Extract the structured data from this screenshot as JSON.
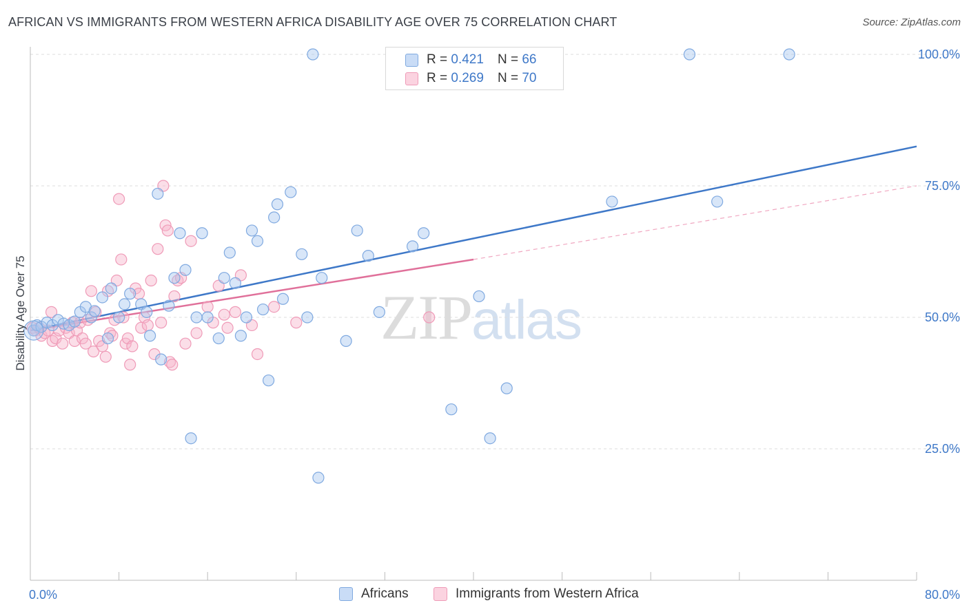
{
  "header": {
    "title": "AFRICAN VS IMMIGRANTS FROM WESTERN AFRICA DISABILITY AGE OVER 75 CORRELATION CHART",
    "source": "Source: ZipAtlas.com"
  },
  "watermark": {
    "zip": "ZIP",
    "atlas": "atlas"
  },
  "legend": {
    "r_label": "R =",
    "n_label": "N =",
    "rows": [
      {
        "r": "0.421",
        "n": "66",
        "color": "#a9c8f0"
      },
      {
        "r": "0.269",
        "n": "70",
        "color": "#f6b6cb"
      }
    ]
  },
  "bottom_legend": {
    "items": [
      {
        "label": "Africans",
        "color": "#a9c8f0"
      },
      {
        "label": "Immigrants from Western Africa",
        "color": "#f6b6cb"
      }
    ]
  },
  "chart_data": {
    "type": "scatter",
    "title": "AFRICAN VS IMMIGRANTS FROM WESTERN AFRICA DISABILITY AGE OVER 75 CORRELATION CHART",
    "ylabel": "Disability Age Over 75",
    "xlabel": "",
    "xlim": [
      0,
      80
    ],
    "ylim": [
      0,
      105
    ],
    "x_tick_labels": {
      "left": "0.0%",
      "right": "80.0%"
    },
    "y_ticks": [
      {
        "value": 25,
        "label": "25.0%"
      },
      {
        "value": 50,
        "label": "50.0%"
      },
      {
        "value": 75,
        "label": "75.0%"
      },
      {
        "value": 100,
        "label": "100.0%"
      }
    ],
    "grid": true,
    "colors": {
      "blue": "#3e78c8",
      "pink": "#e0709a",
      "blue_fill": "#a9c8f0",
      "pink_fill": "#f6b6cb"
    },
    "series": [
      {
        "name": "Africans",
        "color": "#3e78c8",
        "fill": "#a9c8f0",
        "points": [
          [
            0.3,
            47.5
          ],
          [
            0.6,
            48.5
          ],
          [
            1.0,
            48.2
          ],
          [
            1.5,
            49.0
          ],
          [
            2.0,
            48.5
          ],
          [
            2.5,
            49.5
          ],
          [
            3.0,
            48.8
          ],
          [
            3.5,
            48.5
          ],
          [
            4.0,
            49.2
          ],
          [
            4.5,
            51.0
          ],
          [
            5.0,
            52.0
          ],
          [
            5.5,
            50.0
          ],
          [
            5.8,
            51.2
          ],
          [
            6.5,
            53.8
          ],
          [
            7.0,
            46.0
          ],
          [
            7.3,
            55.5
          ],
          [
            8.0,
            50.0
          ],
          [
            8.5,
            52.5
          ],
          [
            9.0,
            54.5
          ],
          [
            10.0,
            52.5
          ],
          [
            10.5,
            51.0
          ],
          [
            10.8,
            46.5
          ],
          [
            11.5,
            73.5
          ],
          [
            11.8,
            42.0
          ],
          [
            12.5,
            52.2
          ],
          [
            13.0,
            57.5
          ],
          [
            13.5,
            66.0
          ],
          [
            14.0,
            59.0
          ],
          [
            14.5,
            27.0
          ],
          [
            15.0,
            50.0
          ],
          [
            15.5,
            66.0
          ],
          [
            16.0,
            50.0
          ],
          [
            17.0,
            46.0
          ],
          [
            17.5,
            57.5
          ],
          [
            18.0,
            62.3
          ],
          [
            18.5,
            56.5
          ],
          [
            19.0,
            46.5
          ],
          [
            19.5,
            50.0
          ],
          [
            20.0,
            66.5
          ],
          [
            20.5,
            64.5
          ],
          [
            21.0,
            51.5
          ],
          [
            21.5,
            38.0
          ],
          [
            22.0,
            69.0
          ],
          [
            22.3,
            71.5
          ],
          [
            22.8,
            53.5
          ],
          [
            23.5,
            73.8
          ],
          [
            24.5,
            62.0
          ],
          [
            25.0,
            50.0
          ],
          [
            25.5,
            100.0
          ],
          [
            26.0,
            19.5
          ],
          [
            26.3,
            57.5
          ],
          [
            28.5,
            45.5
          ],
          [
            29.5,
            66.5
          ],
          [
            30.5,
            61.7
          ],
          [
            31.5,
            51.0
          ],
          [
            33.0,
            100.0
          ],
          [
            34.5,
            63.5
          ],
          [
            35.5,
            66.0
          ],
          [
            38.0,
            32.5
          ],
          [
            40.5,
            54.0
          ],
          [
            41.5,
            27.0
          ],
          [
            43.0,
            36.5
          ],
          [
            52.5,
            72.0
          ],
          [
            59.5,
            100.0
          ],
          [
            62.0,
            72.0
          ],
          [
            68.5,
            100.0
          ]
        ],
        "trend": {
          "x": [
            0,
            80
          ],
          "y": [
            47.5,
            82.5
          ],
          "style": "solid"
        }
      },
      {
        "name": "Immigrants from Western Africa",
        "color": "#e0709a",
        "fill": "#f6b6cb",
        "points": [
          [
            0.2,
            48.0
          ],
          [
            0.5,
            47.5
          ],
          [
            0.8,
            48.0
          ],
          [
            1.0,
            46.5
          ],
          [
            1.3,
            47.0
          ],
          [
            1.6,
            47.5
          ],
          [
            1.9,
            51.0
          ],
          [
            2.0,
            45.5
          ],
          [
            2.3,
            46.0
          ],
          [
            2.6,
            47.5
          ],
          [
            2.9,
            45.0
          ],
          [
            3.2,
            48.0
          ],
          [
            3.5,
            47.0
          ],
          [
            3.8,
            49.0
          ],
          [
            4.0,
            45.5
          ],
          [
            4.2,
            47.5
          ],
          [
            4.5,
            49.0
          ],
          [
            4.7,
            46.0
          ],
          [
            5.0,
            45.0
          ],
          [
            5.2,
            49.5
          ],
          [
            5.5,
            55.0
          ],
          [
            5.7,
            43.5
          ],
          [
            5.9,
            51.0
          ],
          [
            6.2,
            45.5
          ],
          [
            6.5,
            44.5
          ],
          [
            6.8,
            42.5
          ],
          [
            7.0,
            55.0
          ],
          [
            7.2,
            47.0
          ],
          [
            7.4,
            46.5
          ],
          [
            7.6,
            49.5
          ],
          [
            7.8,
            57.0
          ],
          [
            8.0,
            72.5
          ],
          [
            8.2,
            61.0
          ],
          [
            8.4,
            50.0
          ],
          [
            8.6,
            45.0
          ],
          [
            8.8,
            46.0
          ],
          [
            9.0,
            41.0
          ],
          [
            9.2,
            44.5
          ],
          [
            9.5,
            55.5
          ],
          [
            9.8,
            54.5
          ],
          [
            10.0,
            48.0
          ],
          [
            10.3,
            50.0
          ],
          [
            10.6,
            48.5
          ],
          [
            10.9,
            57.0
          ],
          [
            11.2,
            43.0
          ],
          [
            11.5,
            63.0
          ],
          [
            11.8,
            49.0
          ],
          [
            12.0,
            75.0
          ],
          [
            12.2,
            67.5
          ],
          [
            12.4,
            66.5
          ],
          [
            12.6,
            41.5
          ],
          [
            12.8,
            41.0
          ],
          [
            13.0,
            54.0
          ],
          [
            13.3,
            57.0
          ],
          [
            13.6,
            57.5
          ],
          [
            14.0,
            45.0
          ],
          [
            14.5,
            64.5
          ],
          [
            15.0,
            47.0
          ],
          [
            16.0,
            52.0
          ],
          [
            16.5,
            49.0
          ],
          [
            17.0,
            56.0
          ],
          [
            17.5,
            50.5
          ],
          [
            17.8,
            48.0
          ],
          [
            18.5,
            51.0
          ],
          [
            19.0,
            58.0
          ],
          [
            20.0,
            48.5
          ],
          [
            20.5,
            43.0
          ],
          [
            22.0,
            52.0
          ],
          [
            24.0,
            49.0
          ],
          [
            36.0,
            50.0
          ]
        ],
        "trend": {
          "x": [
            0,
            40
          ],
          "y": [
            47.5,
            61.0
          ],
          "style": "solid"
        },
        "trend_extension": {
          "x": [
            40,
            80
          ],
          "y": [
            61.0,
            75.0
          ],
          "style": "dashed"
        }
      }
    ]
  }
}
